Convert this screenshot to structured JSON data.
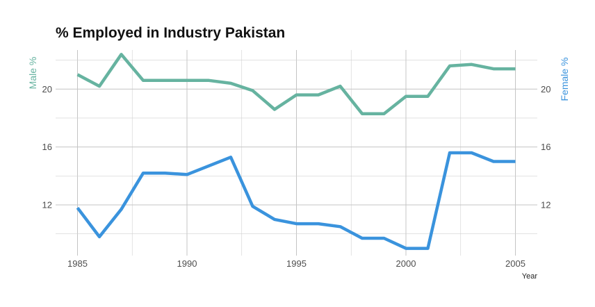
{
  "chart_data": {
    "type": "line",
    "title": "% Employed in Industry Pakistan",
    "xlabel": "Year",
    "ylabel_left": "Male %",
    "ylabel_right": "Female %",
    "x": [
      1985,
      1986,
      1987,
      1988,
      1989,
      1990,
      1991,
      1992,
      1993,
      1994,
      1995,
      1996,
      1997,
      1998,
      1999,
      2000,
      2001,
      2002,
      2003,
      2004,
      2005
    ],
    "x_ticks": [
      "1985",
      "1990",
      "1995",
      "2000",
      "2005"
    ],
    "y_ticks_left": [
      "12",
      "16",
      "20"
    ],
    "y_ticks_right": [
      "12",
      "16",
      "20"
    ],
    "ylim": [
      8.5,
      22.7
    ],
    "xlim": [
      1984.0,
      2006.0
    ],
    "grid": true,
    "series": [
      {
        "name": "Male %",
        "color": "#66b3a0",
        "values": [
          21.0,
          20.2,
          22.4,
          20.6,
          20.6,
          20.6,
          20.6,
          20.4,
          19.9,
          18.6,
          19.6,
          19.6,
          20.2,
          18.3,
          18.3,
          19.5,
          19.5,
          21.6,
          21.7,
          21.4,
          21.4
        ]
      },
      {
        "name": "Female %",
        "color": "#3a93dd",
        "values": [
          11.8,
          9.8,
          11.7,
          14.2,
          14.2,
          14.1,
          14.7,
          15.3,
          11.9,
          11.0,
          10.7,
          10.7,
          10.5,
          9.7,
          9.7,
          9.0,
          9.0,
          15.6,
          15.6,
          15.0,
          15.0
        ]
      }
    ]
  }
}
